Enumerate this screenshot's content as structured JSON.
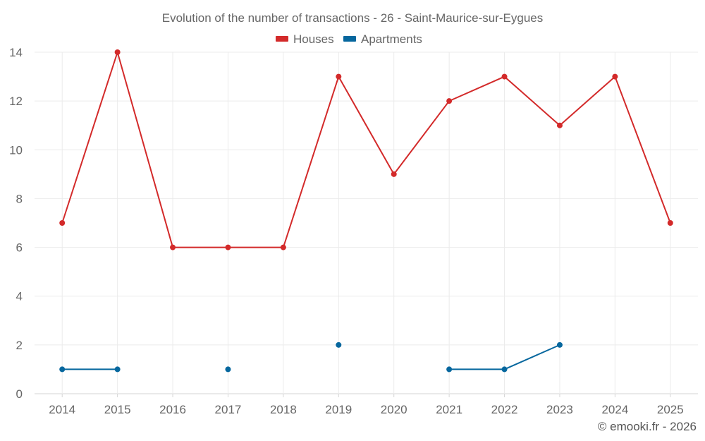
{
  "chart_data": {
    "type": "line",
    "title": "Evolution of the number of transactions - 26 - Saint-Maurice-sur-Eygues",
    "categories": [
      "2014",
      "2015",
      "2016",
      "2017",
      "2018",
      "2019",
      "2020",
      "2021",
      "2022",
      "2023",
      "2024",
      "2025"
    ],
    "series": [
      {
        "name": "Houses",
        "color": "#d32a2a",
        "values": [
          7,
          14,
          6,
          6,
          6,
          13,
          9,
          12,
          13,
          11,
          13,
          7
        ]
      },
      {
        "name": "Apartments",
        "color": "#06679e",
        "values": [
          1,
          1,
          null,
          1,
          null,
          2,
          null,
          1,
          1,
          2,
          null,
          null
        ]
      }
    ],
    "ylim": [
      0,
      14
    ],
    "yticks": [
      0,
      2,
      4,
      6,
      8,
      10,
      12,
      14
    ],
    "grid": true,
    "legend_position": "top-center",
    "xlabel": "",
    "ylabel": ""
  },
  "credit": "© emooki.fr - 2026"
}
